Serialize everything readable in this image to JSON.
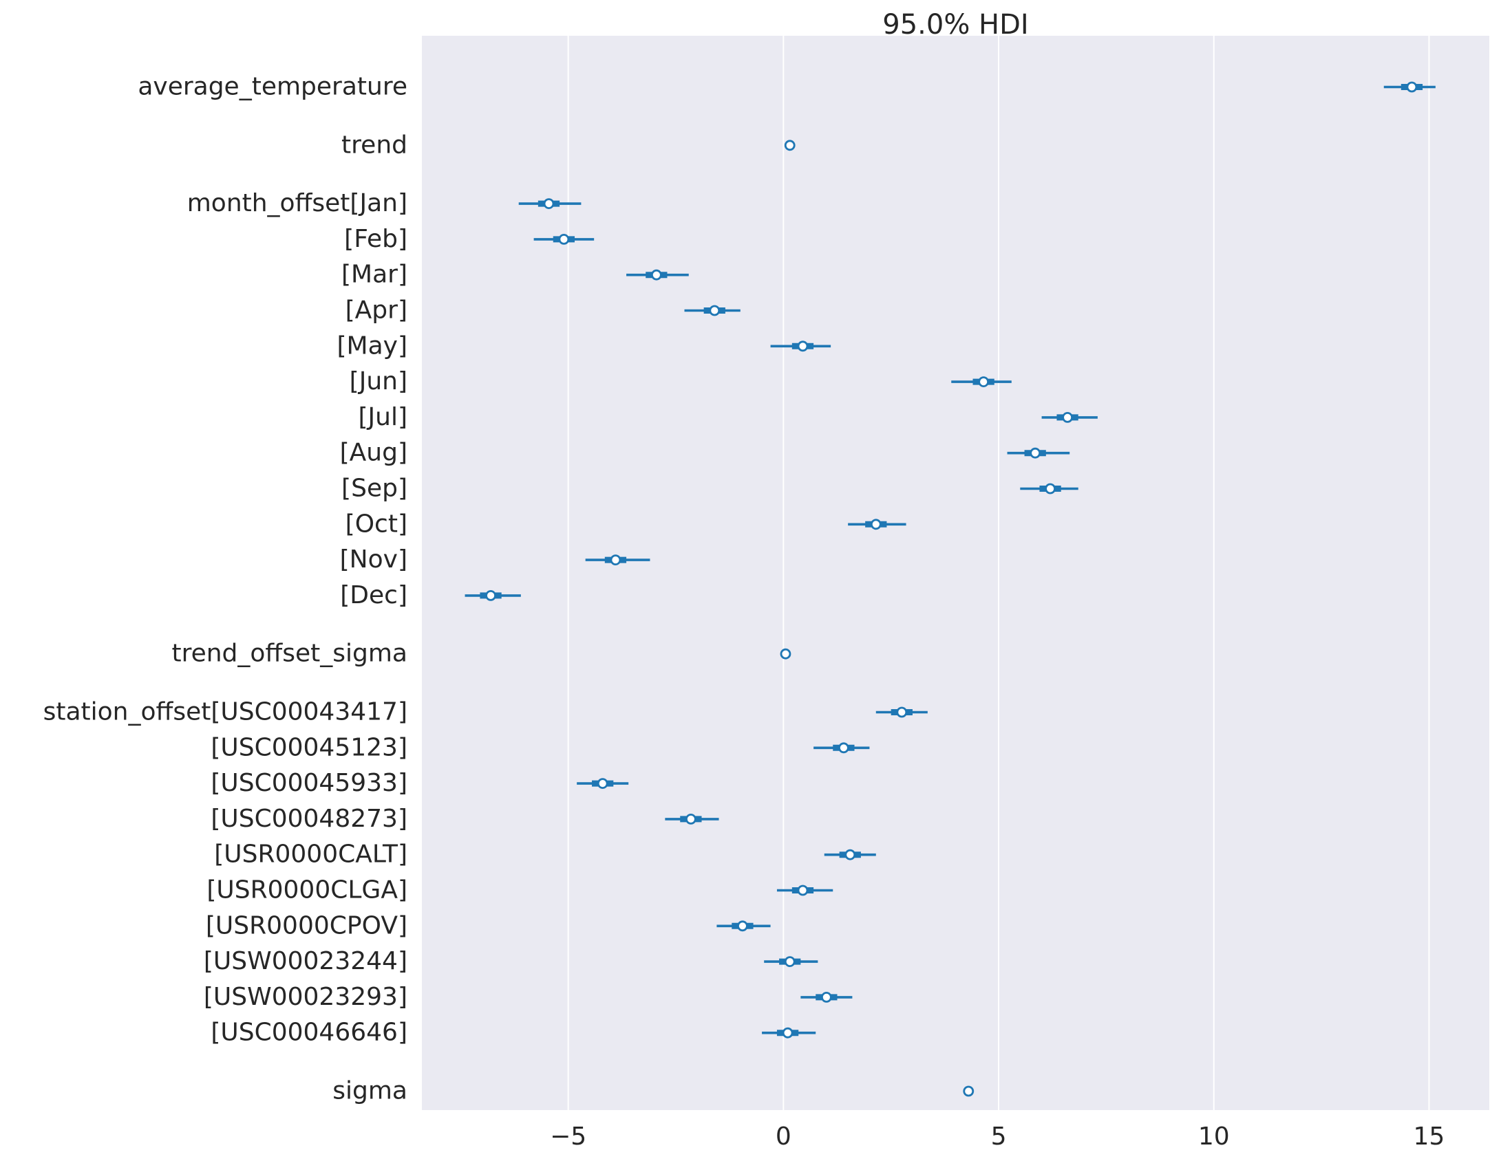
{
  "chart_data": {
    "type": "forest",
    "title": "95.0% HDI",
    "xlabel": "",
    "ylabel": "",
    "xlim": [
      -8.4,
      16.4
    ],
    "xticks": [
      -5,
      0,
      5,
      10,
      15
    ],
    "xtick_labels": [
      "−5",
      "0",
      "5",
      "10",
      "15"
    ],
    "grid": "vertical",
    "background": "#EAEAF2",
    "grid_color": "#FFFFFF",
    "series_color": "#1F77B4",
    "rows": [
      {
        "label": "average_temperature",
        "group_gap": false,
        "mean": 14.6,
        "iqr": [
          14.35,
          14.85
        ],
        "hdi": [
          13.95,
          15.15
        ]
      },
      {
        "label": "trend",
        "group_gap": true,
        "mean": 0.15,
        "iqr": null,
        "hdi": null
      },
      {
        "label": "month_offset[Jan]",
        "group_gap": true,
        "mean": -5.45,
        "iqr": [
          -5.7,
          -5.2
        ],
        "hdi": [
          -6.15,
          -4.7
        ]
      },
      {
        "label": "[Feb]",
        "group_gap": false,
        "mean": -5.1,
        "iqr": [
          -5.35,
          -4.85
        ],
        "hdi": [
          -5.8,
          -4.4
        ]
      },
      {
        "label": "[Mar]",
        "group_gap": false,
        "mean": -2.95,
        "iqr": [
          -3.2,
          -2.7
        ],
        "hdi": [
          -3.65,
          -2.2
        ]
      },
      {
        "label": "[Apr]",
        "group_gap": false,
        "mean": -1.6,
        "iqr": [
          -1.85,
          -1.35
        ],
        "hdi": [
          -2.3,
          -1.0
        ]
      },
      {
        "label": "[May]",
        "group_gap": false,
        "mean": 0.45,
        "iqr": [
          0.2,
          0.7
        ],
        "hdi": [
          -0.3,
          1.1
        ]
      },
      {
        "label": "[Jun]",
        "group_gap": false,
        "mean": 4.65,
        "iqr": [
          4.4,
          4.9
        ],
        "hdi": [
          3.9,
          5.3
        ]
      },
      {
        "label": "[Jul]",
        "group_gap": false,
        "mean": 6.6,
        "iqr": [
          6.35,
          6.85
        ],
        "hdi": [
          6.0,
          7.3
        ]
      },
      {
        "label": "[Aug]",
        "group_gap": false,
        "mean": 5.85,
        "iqr": [
          5.6,
          6.1
        ],
        "hdi": [
          5.2,
          6.65
        ]
      },
      {
        "label": "[Sep]",
        "group_gap": false,
        "mean": 6.2,
        "iqr": [
          5.95,
          6.45
        ],
        "hdi": [
          5.5,
          6.85
        ]
      },
      {
        "label": "[Oct]",
        "group_gap": false,
        "mean": 2.15,
        "iqr": [
          1.9,
          2.4
        ],
        "hdi": [
          1.5,
          2.85
        ]
      },
      {
        "label": "[Nov]",
        "group_gap": false,
        "mean": -3.9,
        "iqr": [
          -4.15,
          -3.65
        ],
        "hdi": [
          -4.6,
          -3.1
        ]
      },
      {
        "label": "[Dec]",
        "group_gap": false,
        "mean": -6.8,
        "iqr": [
          -7.05,
          -6.55
        ],
        "hdi": [
          -7.4,
          -6.1
        ]
      },
      {
        "label": "trend_offset_sigma",
        "group_gap": true,
        "mean": 0.05,
        "iqr": null,
        "hdi": null
      },
      {
        "label": "station_offset[USC00043417]",
        "group_gap": true,
        "mean": 2.75,
        "iqr": [
          2.5,
          3.0
        ],
        "hdi": [
          2.15,
          3.35
        ]
      },
      {
        "label": "[USC00045123]",
        "group_gap": false,
        "mean": 1.4,
        "iqr": [
          1.15,
          1.65
        ],
        "hdi": [
          0.7,
          2.0
        ]
      },
      {
        "label": "[USC00045933]",
        "group_gap": false,
        "mean": -4.2,
        "iqr": [
          -4.45,
          -3.95
        ],
        "hdi": [
          -4.8,
          -3.6
        ]
      },
      {
        "label": "[USC00048273]",
        "group_gap": false,
        "mean": -2.15,
        "iqr": [
          -2.4,
          -1.9
        ],
        "hdi": [
          -2.75,
          -1.5
        ]
      },
      {
        "label": "[USR0000CALT]",
        "group_gap": false,
        "mean": 1.55,
        "iqr": [
          1.3,
          1.8
        ],
        "hdi": [
          0.95,
          2.15
        ]
      },
      {
        "label": "[USR0000CLGA]",
        "group_gap": false,
        "mean": 0.45,
        "iqr": [
          0.2,
          0.7
        ],
        "hdi": [
          -0.15,
          1.15
        ]
      },
      {
        "label": "[USR0000CPOV]",
        "group_gap": false,
        "mean": -0.95,
        "iqr": [
          -1.2,
          -0.7
        ],
        "hdi": [
          -1.55,
          -0.3
        ]
      },
      {
        "label": "[USW00023244]",
        "group_gap": false,
        "mean": 0.15,
        "iqr": [
          -0.1,
          0.4
        ],
        "hdi": [
          -0.45,
          0.8
        ]
      },
      {
        "label": "[USW00023293]",
        "group_gap": false,
        "mean": 1.0,
        "iqr": [
          0.75,
          1.25
        ],
        "hdi": [
          0.4,
          1.6
        ]
      },
      {
        "label": "[USC00046646]",
        "group_gap": false,
        "mean": 0.1,
        "iqr": [
          -0.15,
          0.35
        ],
        "hdi": [
          -0.5,
          0.75
        ]
      },
      {
        "label": "sigma",
        "group_gap": true,
        "mean": 4.3,
        "iqr": null,
        "hdi": null
      }
    ]
  }
}
